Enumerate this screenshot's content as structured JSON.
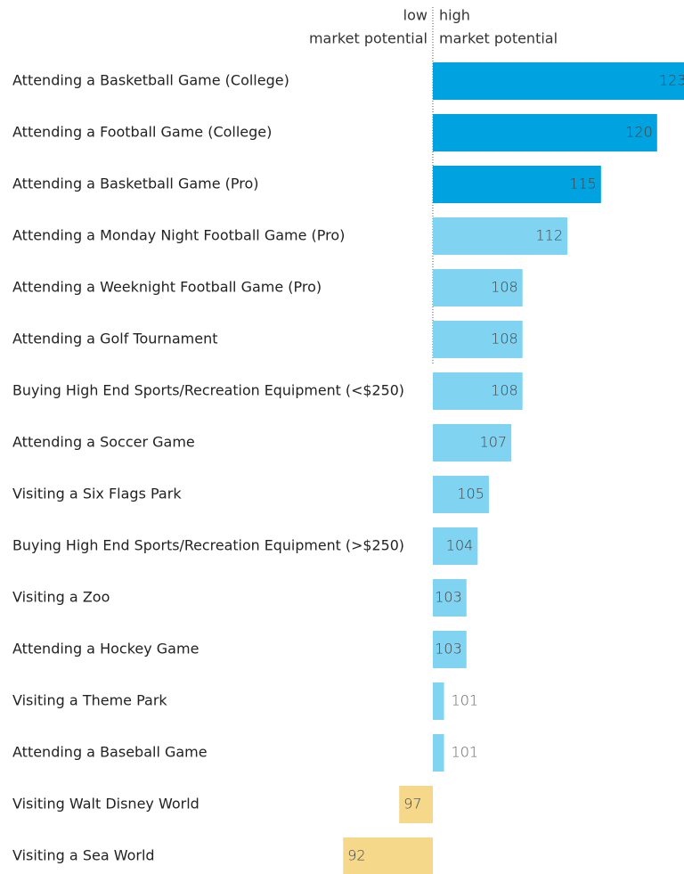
{
  "chart_data": {
    "type": "bar",
    "orientation": "horizontal",
    "low_label": [
      "low",
      "market potential"
    ],
    "high_label": [
      "high",
      "market potential"
    ],
    "categories": [
      "Attending a Basketball Game (College)",
      "Attending a Football Game (College)",
      "Attending a Basketball Game (Pro)",
      "Attending a Monday Night Football Game (Pro)",
      "Attending a Weeknight Football Game (Pro)",
      "Attending a Golf Tournament",
      "Buying High End Sports/Recreation Equipment (<$250)",
      "Attending a Soccer Game",
      "Visiting a Six Flags Park",
      "Buying High End Sports/Recreation Equipment (>$250)",
      "Visiting a Zoo",
      "Attending a Hockey Game",
      "Visiting a Theme Park",
      "Attending a Baseball Game",
      "Visiting Walt Disney World",
      "Visiting a Sea World"
    ],
    "values": [
      123,
      120,
      115,
      112,
      108,
      108,
      108,
      107,
      105,
      104,
      103,
      103,
      101,
      101,
      97,
      92
    ],
    "colors": [
      "#00a3e0",
      "#00a3e0",
      "#00a3e0",
      "#80d4f2",
      "#80d4f2",
      "#80d4f2",
      "#80d4f2",
      "#80d4f2",
      "#80d4f2",
      "#80d4f2",
      "#80d4f2",
      "#80d4f2",
      "#80d4f2",
      "#80d4f2",
      "#f6d88b",
      "#f6d88b"
    ],
    "baseline": 100,
    "xlim": [
      61.4,
      122.4
    ]
  }
}
